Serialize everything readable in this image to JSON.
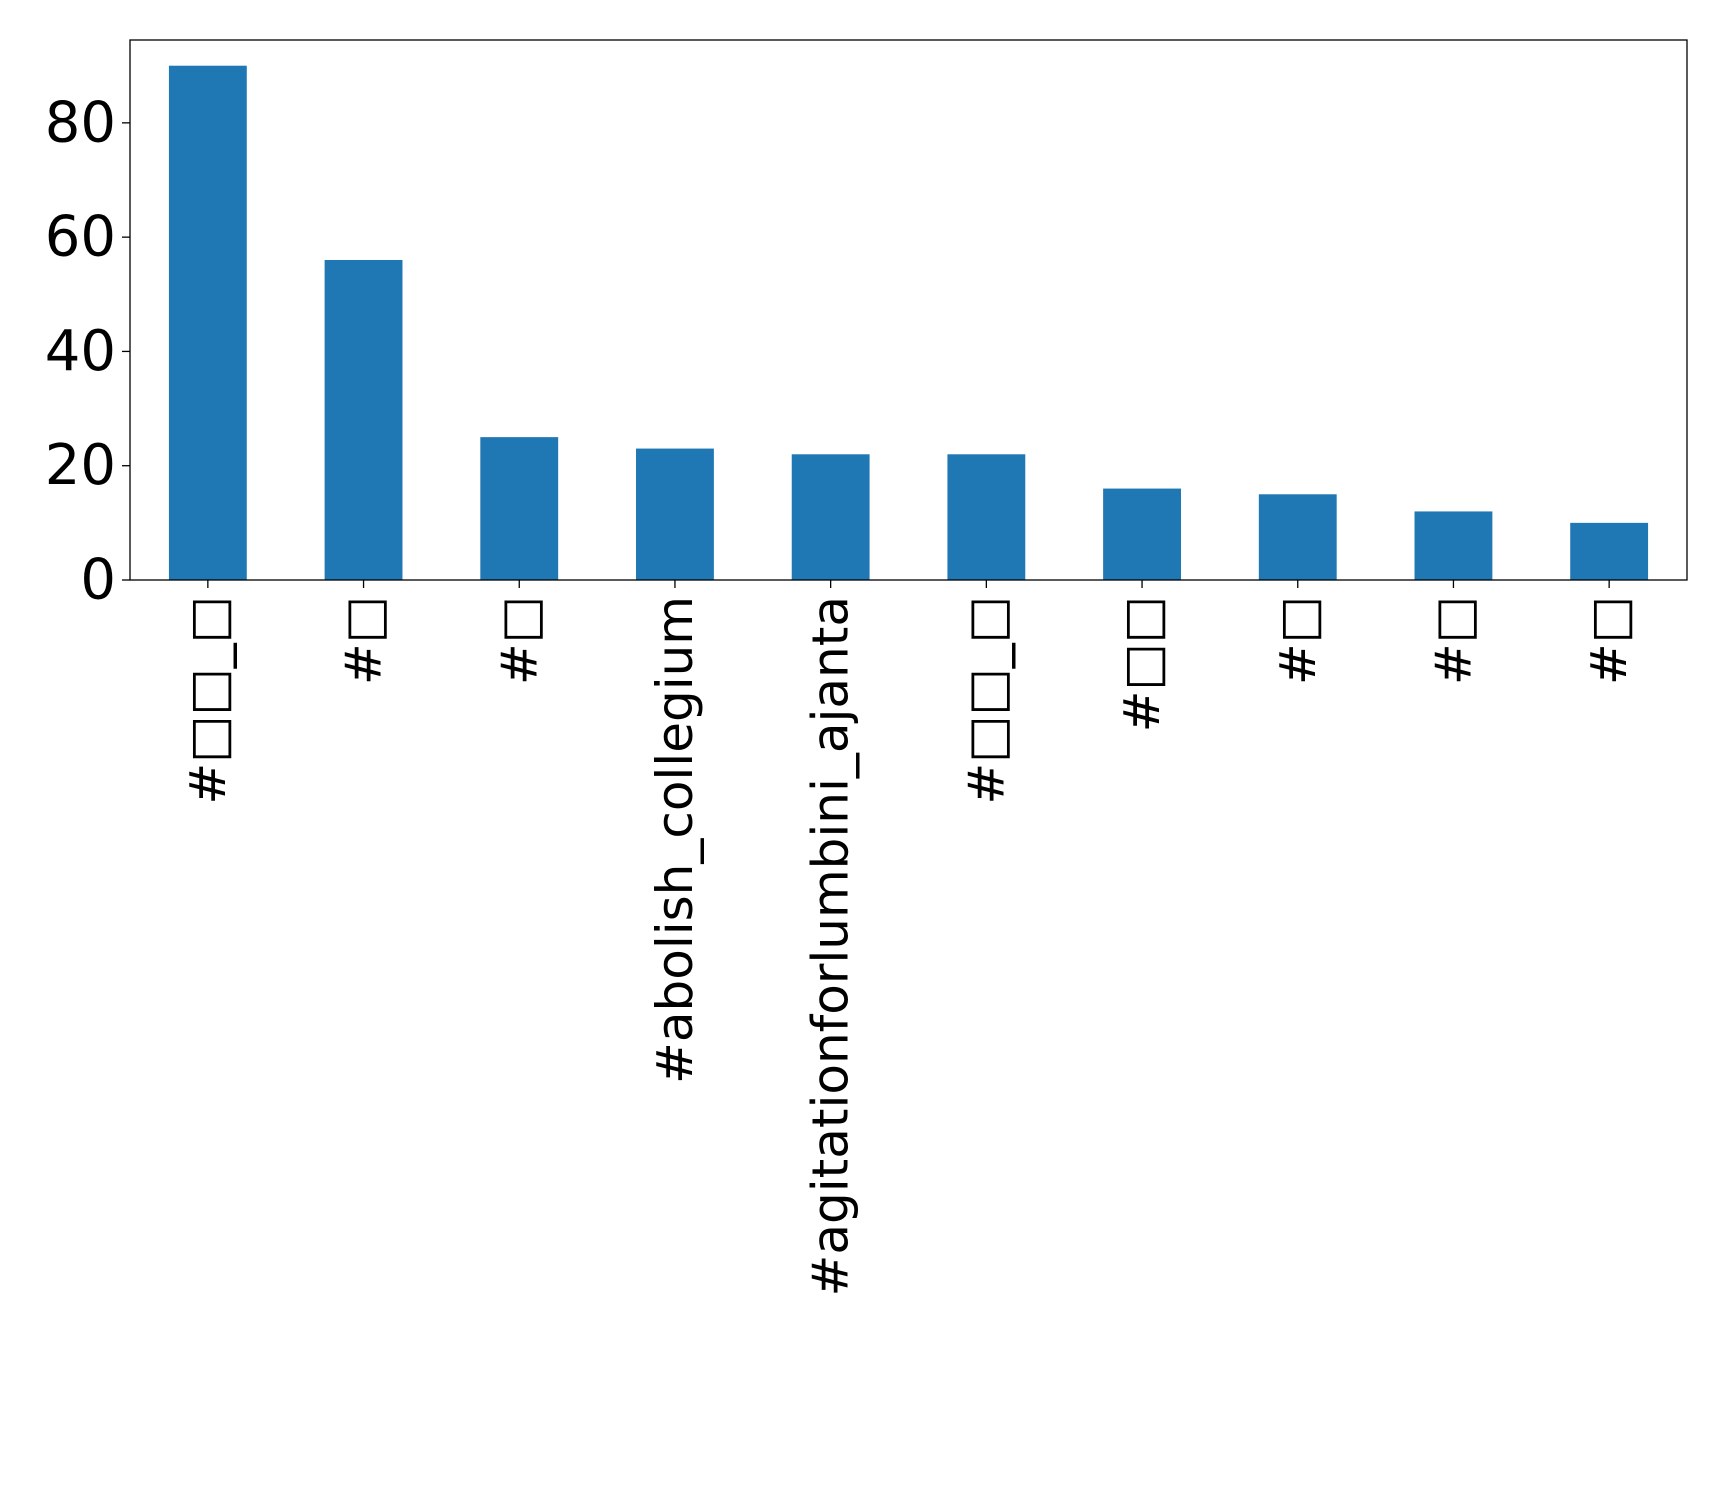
{
  "chart_data": {
    "type": "bar",
    "categories": [
      "#□□_□",
      "#□",
      "#□",
      "#abolish_collegium",
      "#agitationforlumbini_ajanta",
      "#□□_□",
      "#□□",
      "#□",
      "#□",
      "#□"
    ],
    "values": [
      90,
      56,
      25,
      23,
      22,
      22,
      16,
      15,
      12,
      10
    ],
    "yticks": [
      0,
      20,
      40,
      60,
      80
    ],
    "ylim": [
      0,
      94.5
    ],
    "title": "",
    "xlabel": "",
    "ylabel": "",
    "grid": false,
    "legend": "none",
    "bar_color": "#1f77b4"
  }
}
